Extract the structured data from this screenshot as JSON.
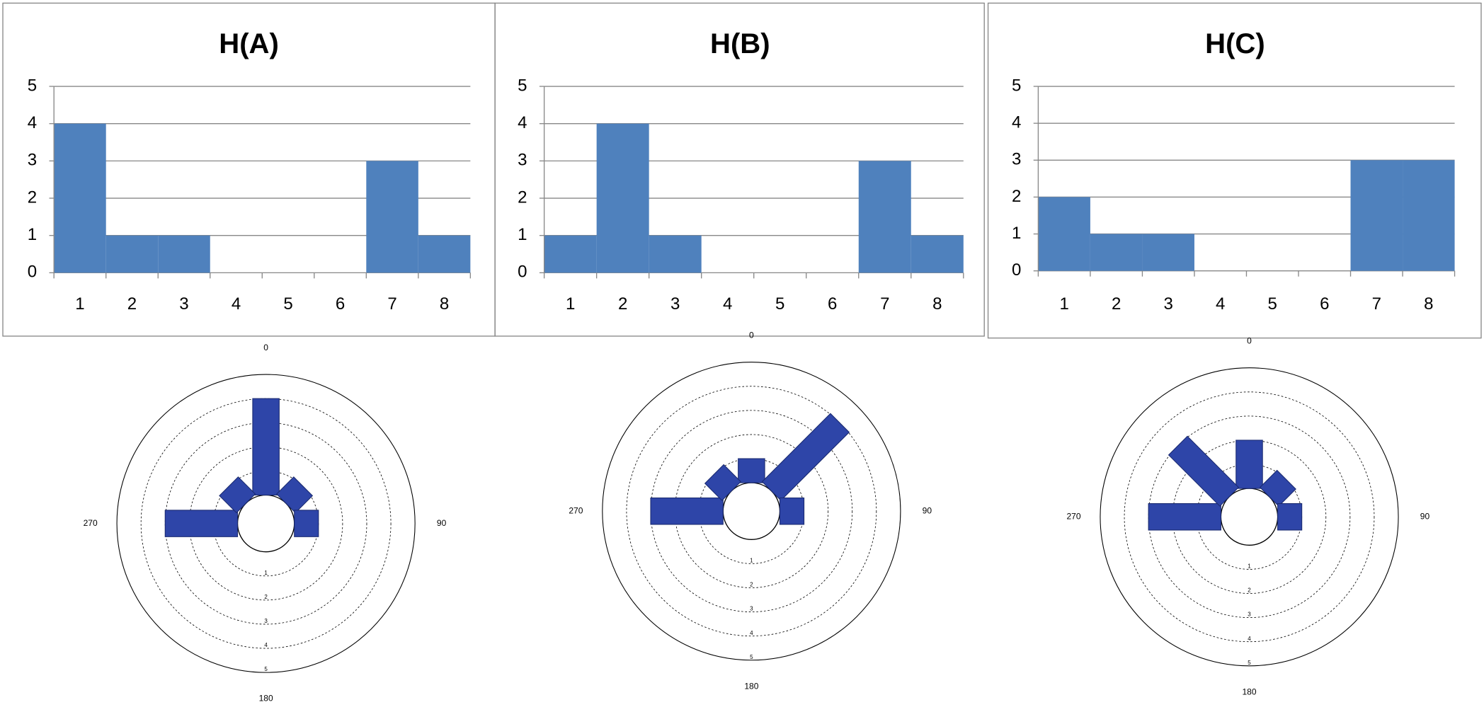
{
  "chart_data": [
    {
      "type": "bar",
      "title": "H(A)",
      "categories": [
        "1",
        "2",
        "3",
        "4",
        "5",
        "6",
        "7",
        "8"
      ],
      "values": [
        4,
        1,
        1,
        0,
        0,
        0,
        3,
        1
      ],
      "color": "#4f81bd",
      "ylim": [
        0,
        5
      ],
      "yticks": [
        0,
        1,
        2,
        3,
        4,
        5
      ],
      "grid": true
    },
    {
      "type": "bar",
      "title": "H(B)",
      "categories": [
        "1",
        "2",
        "3",
        "4",
        "5",
        "6",
        "7",
        "8"
      ],
      "values": [
        1,
        4,
        1,
        0,
        0,
        0,
        3,
        1
      ],
      "color": "#4f81bd",
      "ylim": [
        0,
        5
      ],
      "yticks": [
        0,
        1,
        2,
        3,
        4,
        5
      ],
      "grid": true
    },
    {
      "type": "bar",
      "title": "H(C)",
      "categories": [
        "1",
        "2",
        "3",
        "4",
        "5",
        "6",
        "7",
        "8"
      ],
      "values": [
        2,
        1,
        1,
        0,
        0,
        0,
        3,
        3
      ],
      "color": "#4f81bd",
      "ylim": [
        0,
        5
      ],
      "yticks": [
        0,
        1,
        2,
        3,
        4,
        5
      ],
      "grid": true
    },
    {
      "type": "polar_bar",
      "values": [
        4,
        1,
        1,
        0,
        0,
        0,
        3,
        1
      ],
      "color": "#2e45a8",
      "rlim": [
        0,
        5
      ],
      "rticks": [
        1,
        2,
        3,
        4,
        5
      ],
      "angle_ticks": [
        0,
        90,
        180,
        270
      ]
    },
    {
      "type": "polar_bar",
      "values": [
        1,
        4,
        1,
        0,
        0,
        0,
        3,
        1
      ],
      "color": "#2e45a8",
      "rlim": [
        0,
        5
      ],
      "rticks": [
        1,
        2,
        3,
        4,
        5
      ],
      "angle_ticks": [
        0,
        90,
        180,
        270
      ]
    },
    {
      "type": "polar_bar",
      "values": [
        2,
        1,
        1,
        0,
        0,
        0,
        3,
        3
      ],
      "color": "#2e45a8",
      "rlim": [
        0,
        5
      ],
      "rticks": [
        1,
        2,
        3,
        4,
        5
      ],
      "angle_ticks": [
        0,
        90,
        180,
        270
      ]
    }
  ]
}
